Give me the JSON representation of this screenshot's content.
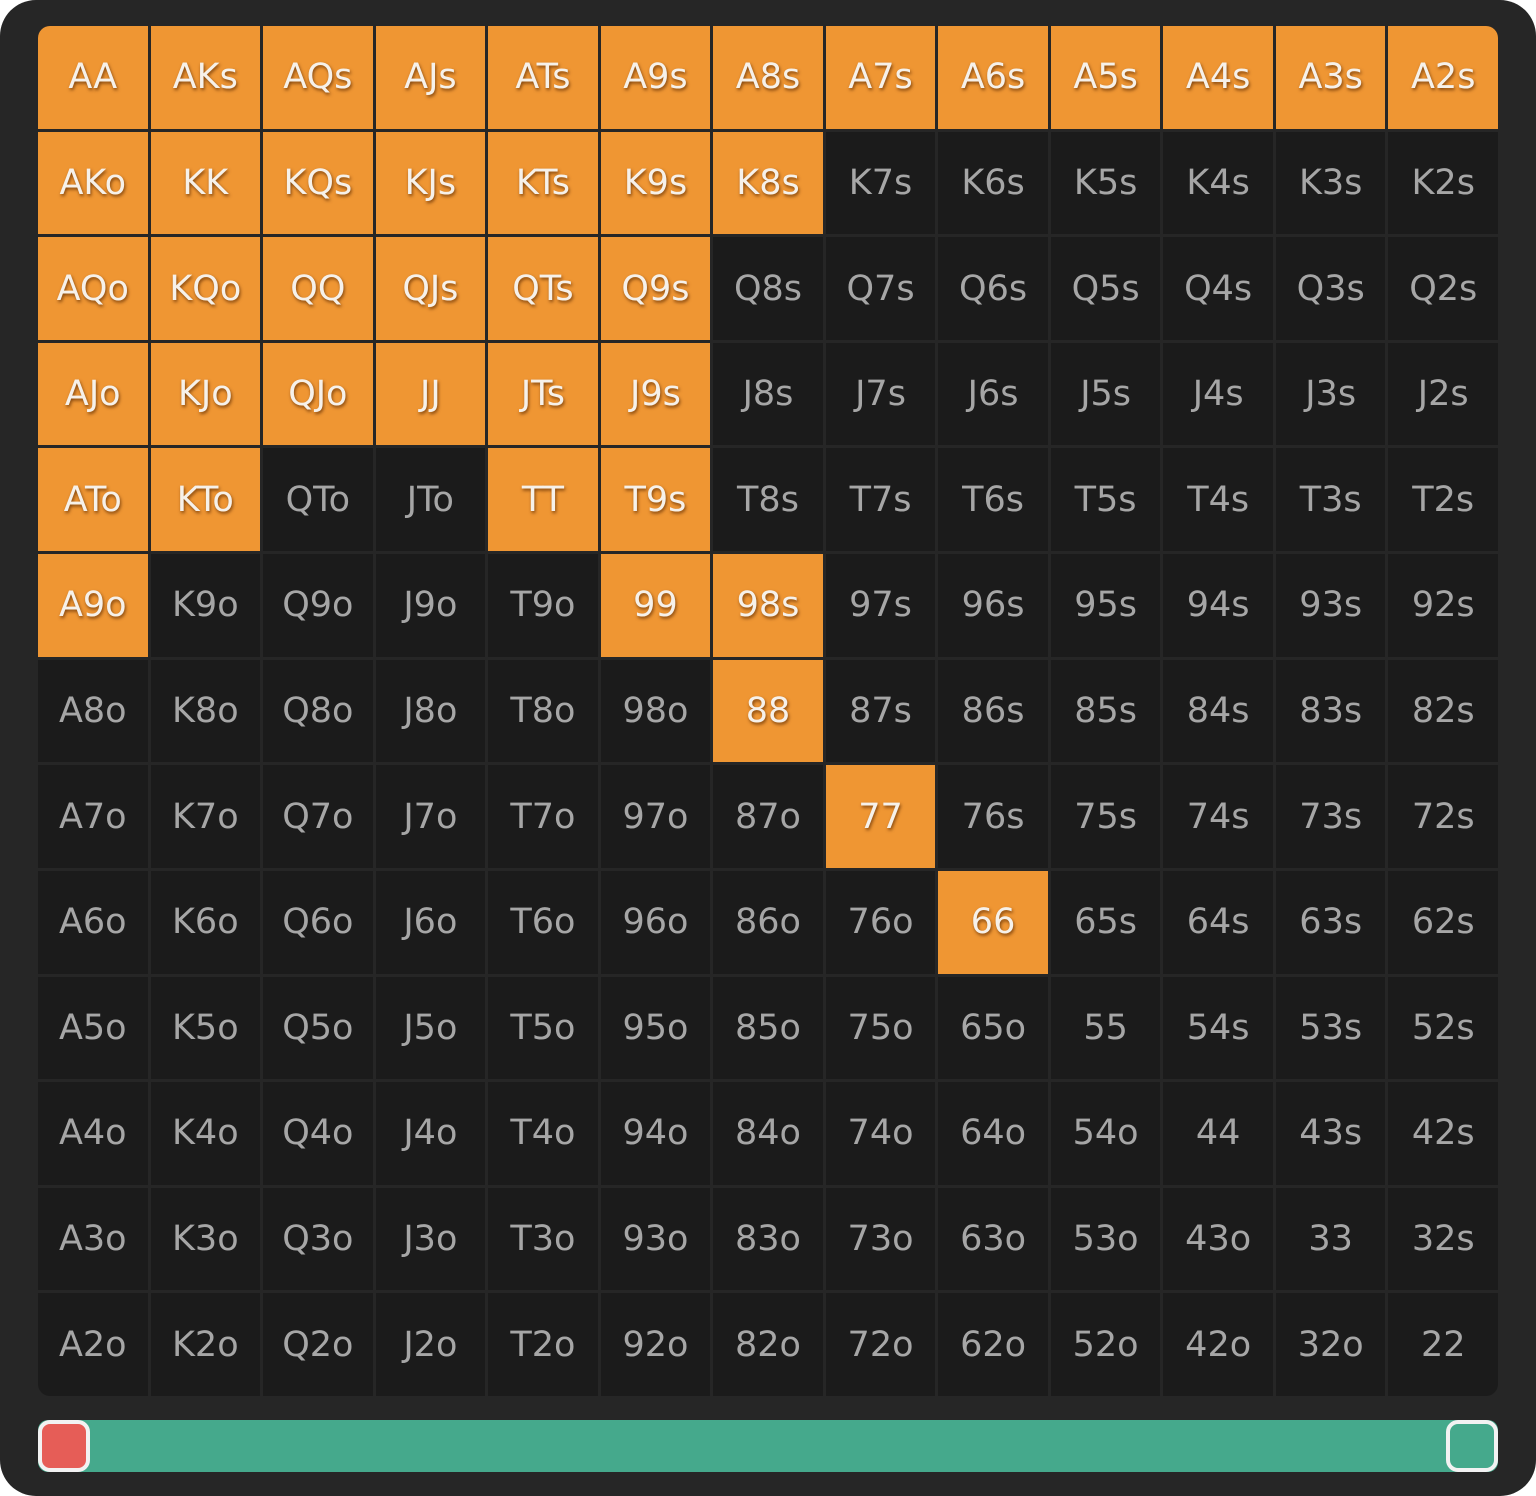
{
  "colors": {
    "selected": "#ef9633",
    "unselected": "#1b1b1b",
    "slider_track": "#45a98c",
    "slider_low_handle": "#e65d57"
  },
  "hand_grid": [
    [
      "AA",
      "AKs",
      "AQs",
      "AJs",
      "ATs",
      "A9s",
      "A8s",
      "A7s",
      "A6s",
      "A5s",
      "A4s",
      "A3s",
      "A2s"
    ],
    [
      "AKo",
      "KK",
      "KQs",
      "KJs",
      "KTs",
      "K9s",
      "K8s",
      "K7s",
      "K6s",
      "K5s",
      "K4s",
      "K3s",
      "K2s"
    ],
    [
      "AQo",
      "KQo",
      "QQ",
      "QJs",
      "QTs",
      "Q9s",
      "Q8s",
      "Q7s",
      "Q6s",
      "Q5s",
      "Q4s",
      "Q3s",
      "Q2s"
    ],
    [
      "AJo",
      "KJo",
      "QJo",
      "JJ",
      "JTs",
      "J9s",
      "J8s",
      "J7s",
      "J6s",
      "J5s",
      "J4s",
      "J3s",
      "J2s"
    ],
    [
      "ATo",
      "KTo",
      "QTo",
      "JTo",
      "TT",
      "T9s",
      "T8s",
      "T7s",
      "T6s",
      "T5s",
      "T4s",
      "T3s",
      "T2s"
    ],
    [
      "A9o",
      "K9o",
      "Q9o",
      "J9o",
      "T9o",
      "99",
      "98s",
      "97s",
      "96s",
      "95s",
      "94s",
      "93s",
      "92s"
    ],
    [
      "A8o",
      "K8o",
      "Q8o",
      "J8o",
      "T8o",
      "98o",
      "88",
      "87s",
      "86s",
      "85s",
      "84s",
      "83s",
      "82s"
    ],
    [
      "A7o",
      "K7o",
      "Q7o",
      "J7o",
      "T7o",
      "97o",
      "87o",
      "77",
      "76s",
      "75s",
      "74s",
      "73s",
      "72s"
    ],
    [
      "A6o",
      "K6o",
      "Q6o",
      "J6o",
      "T6o",
      "96o",
      "86o",
      "76o",
      "66",
      "65s",
      "64s",
      "63s",
      "62s"
    ],
    [
      "A5o",
      "K5o",
      "Q5o",
      "J5o",
      "T5o",
      "95o",
      "85o",
      "75o",
      "65o",
      "55",
      "54s",
      "53s",
      "52s"
    ],
    [
      "A4o",
      "K4o",
      "Q4o",
      "J4o",
      "T4o",
      "94o",
      "84o",
      "74o",
      "64o",
      "54o",
      "44",
      "43s",
      "42s"
    ],
    [
      "A3o",
      "K3o",
      "Q3o",
      "J3o",
      "T3o",
      "93o",
      "83o",
      "73o",
      "63o",
      "53o",
      "43o",
      "33",
      "32s"
    ],
    [
      "A2o",
      "K2o",
      "Q2o",
      "J2o",
      "T2o",
      "92o",
      "82o",
      "72o",
      "62o",
      "52o",
      "42o",
      "32o",
      "22"
    ]
  ],
  "selected_hands": [
    "AA",
    "AKs",
    "AQs",
    "AJs",
    "ATs",
    "A9s",
    "A8s",
    "A7s",
    "A6s",
    "A5s",
    "A4s",
    "A3s",
    "A2s",
    "AKo",
    "KK",
    "KQs",
    "KJs",
    "KTs",
    "K9s",
    "K8s",
    "AQo",
    "KQo",
    "QQ",
    "QJs",
    "QTs",
    "Q9s",
    "AJo",
    "KJo",
    "QJo",
    "JJ",
    "JTs",
    "J9s",
    "ATo",
    "KTo",
    "TT",
    "T9s",
    "A9o",
    "99",
    "98s",
    "88",
    "77",
    "66"
  ],
  "range_slider": {
    "low": 0,
    "high": 1
  }
}
